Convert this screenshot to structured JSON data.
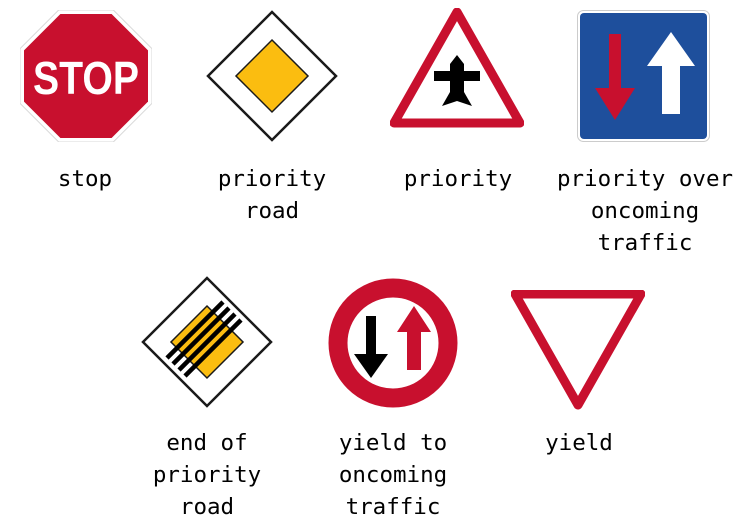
{
  "colors": {
    "red": "#c8102e",
    "blue": "#1e4f9c",
    "yellow": "#fbbd10",
    "black": "#000000",
    "white": "#ffffff"
  },
  "signs": [
    {
      "id": "stop",
      "caption": "stop",
      "sign_text": "STOP"
    },
    {
      "id": "priority-road",
      "caption": "priority\nroad"
    },
    {
      "id": "priority",
      "caption": "priority"
    },
    {
      "id": "priority-over-oncoming",
      "caption": "priority over\noncoming\ntraffic"
    },
    {
      "id": "end-priority-road",
      "caption": "end of\npriority\nroad"
    },
    {
      "id": "yield-oncoming",
      "caption": "yield to\noncoming\ntraffic"
    },
    {
      "id": "yield",
      "caption": "yield"
    }
  ]
}
